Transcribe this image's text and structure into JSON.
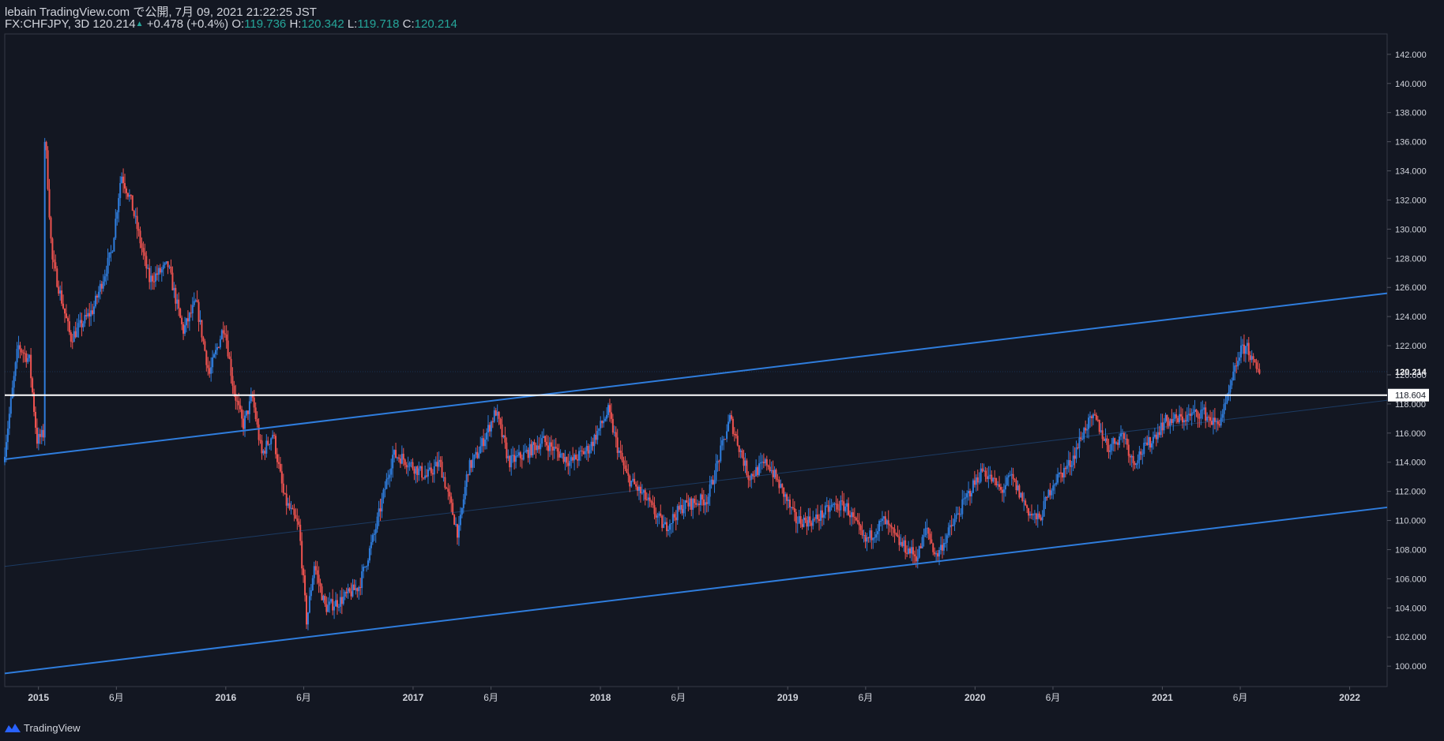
{
  "header": {
    "publisher": "lebain TradingView.com で公開, 7月 09, 2021 21:22:25 JST",
    "symbol": "FX:CHFJPY, 3D",
    "last": "120.214",
    "change": "+0.478 (+0.4%)",
    "o_label": "O:",
    "o_value": "119.736",
    "h_label": "H:",
    "h_value": "120.342",
    "l_label": "L:",
    "l_value": "119.718",
    "c_label": "C:",
    "c_value": "120.214"
  },
  "footer": {
    "brand": "TradingView"
  },
  "colors": {
    "background": "#131722",
    "up": "#2f7ddd",
    "down": "#ef5350",
    "channel": "#2f7ddd",
    "hline": "#ffffff",
    "axis_text": "#d1d4dc",
    "grid": "#2a2e39"
  },
  "chart_data": {
    "type": "candlestick",
    "title": "FX:CHFJPY, 3D",
    "ylim": [
      98.6,
      143.4
    ],
    "yticks": [
      100,
      102,
      104,
      106,
      108,
      110,
      112,
      114,
      116,
      118,
      120,
      122,
      124,
      126,
      128,
      130,
      132,
      134,
      136,
      138,
      140,
      142
    ],
    "ytick_labels": [
      "100.000",
      "102.000",
      "104.000",
      "106.000",
      "108.000",
      "110.000",
      "112.000",
      "114.000",
      "116.000",
      "118.000",
      "120.000",
      "122.000",
      "124.000",
      "126.000",
      "128.000",
      "130.000",
      "132.000",
      "134.000",
      "136.000",
      "138.000",
      "140.000",
      "142.000"
    ],
    "xlim": [
      2014.82,
      2022.2
    ],
    "xticks": [
      2015.0,
      2015.416,
      2016.0,
      2016.416,
      2017.0,
      2017.416,
      2018.0,
      2018.416,
      2019.0,
      2019.416,
      2020.0,
      2020.416,
      2021.0,
      2021.416,
      2022.0
    ],
    "xtick_labels": [
      "2015",
      "6月",
      "2016",
      "6月",
      "2017",
      "6月",
      "2018",
      "6月",
      "2019",
      "6月",
      "2020",
      "6月",
      "2021",
      "6月",
      "2022"
    ],
    "last_price": 120.214,
    "last_price_label": "120.214",
    "horizontal_line": {
      "value": 118.604,
      "label": "118.604"
    },
    "channel": {
      "upper": [
        [
          2014.82,
          114.2
        ],
        [
          2022.2,
          125.6
        ]
      ],
      "lower": [
        [
          2014.82,
          99.5
        ],
        [
          2022.2,
          110.9
        ]
      ],
      "mid": [
        [
          2014.82,
          106.85
        ],
        [
          2022.2,
          118.25
        ]
      ]
    },
    "price_path": [
      [
        2014.82,
        114.0
      ],
      [
        2014.9,
        122.0
      ],
      [
        2014.96,
        121.0
      ],
      [
        2015.0,
        115.5
      ],
      [
        2015.04,
        116.0
      ],
      [
        2015.042,
        137.0
      ],
      [
        2015.08,
        128.0
      ],
      [
        2015.18,
        122.5
      ],
      [
        2015.3,
        124.5
      ],
      [
        2015.4,
        128.5
      ],
      [
        2015.45,
        133.8
      ],
      [
        2015.5,
        132.0
      ],
      [
        2015.6,
        126.5
      ],
      [
        2015.7,
        127.5
      ],
      [
        2015.78,
        123.0
      ],
      [
        2015.85,
        125.0
      ],
      [
        2015.92,
        120.0
      ],
      [
        2016.0,
        123.5
      ],
      [
        2016.05,
        119.0
      ],
      [
        2016.1,
        116.5
      ],
      [
        2016.15,
        118.5
      ],
      [
        2016.2,
        114.5
      ],
      [
        2016.26,
        116.0
      ],
      [
        2016.32,
        111.5
      ],
      [
        2016.4,
        109.5
      ],
      [
        2016.44,
        103.0
      ],
      [
        2016.48,
        107.0
      ],
      [
        2016.54,
        104.0
      ],
      [
        2016.62,
        104.5
      ],
      [
        2016.72,
        105.5
      ],
      [
        2016.8,
        109.0
      ],
      [
        2016.9,
        114.5
      ],
      [
        2016.95,
        114.3
      ],
      [
        2017.08,
        113.0
      ],
      [
        2017.15,
        114.0
      ],
      [
        2017.25,
        109.0
      ],
      [
        2017.3,
        113.5
      ],
      [
        2017.35,
        114.5
      ],
      [
        2017.45,
        117.5
      ],
      [
        2017.52,
        114.0
      ],
      [
        2017.6,
        114.5
      ],
      [
        2017.7,
        115.5
      ],
      [
        2017.75,
        115.0
      ],
      [
        2017.85,
        114.0
      ],
      [
        2017.95,
        115.0
      ],
      [
        2018.05,
        117.5
      ],
      [
        2018.1,
        115.0
      ],
      [
        2018.15,
        113.0
      ],
      [
        2018.25,
        111.5
      ],
      [
        2018.35,
        109.5
      ],
      [
        2018.45,
        111.0
      ],
      [
        2018.58,
        111.5
      ],
      [
        2018.7,
        117.0
      ],
      [
        2018.8,
        113.0
      ],
      [
        2018.9,
        114.0
      ],
      [
        2019.0,
        111.5
      ],
      [
        2019.05,
        110.0
      ],
      [
        2019.15,
        110.0
      ],
      [
        2019.25,
        111.0
      ],
      [
        2019.32,
        111.0
      ],
      [
        2019.42,
        108.5
      ],
      [
        2019.52,
        110.0
      ],
      [
        2019.6,
        108.5
      ],
      [
        2019.7,
        107.5
      ],
      [
        2019.75,
        109.5
      ],
      [
        2019.8,
        107.5
      ],
      [
        2019.9,
        110.0
      ],
      [
        2019.98,
        112.0
      ],
      [
        2020.05,
        113.5
      ],
      [
        2020.15,
        112.0
      ],
      [
        2020.2,
        113.0
      ],
      [
        2020.3,
        110.5
      ],
      [
        2020.35,
        110.0
      ],
      [
        2020.42,
        112.5
      ],
      [
        2020.52,
        114.0
      ],
      [
        2020.6,
        116.5
      ],
      [
        2020.65,
        117.0
      ],
      [
        2020.72,
        115.0
      ],
      [
        2020.8,
        116.0
      ],
      [
        2020.85,
        114.0
      ],
      [
        2020.95,
        115.5
      ],
      [
        2021.02,
        116.8
      ],
      [
        2021.12,
        117.0
      ],
      [
        2021.22,
        117.5
      ],
      [
        2021.3,
        116.5
      ],
      [
        2021.35,
        118.0
      ],
      [
        2021.42,
        121.5
      ],
      [
        2021.46,
        122.0
      ],
      [
        2021.5,
        120.5
      ],
      [
        2021.52,
        120.214
      ]
    ]
  }
}
